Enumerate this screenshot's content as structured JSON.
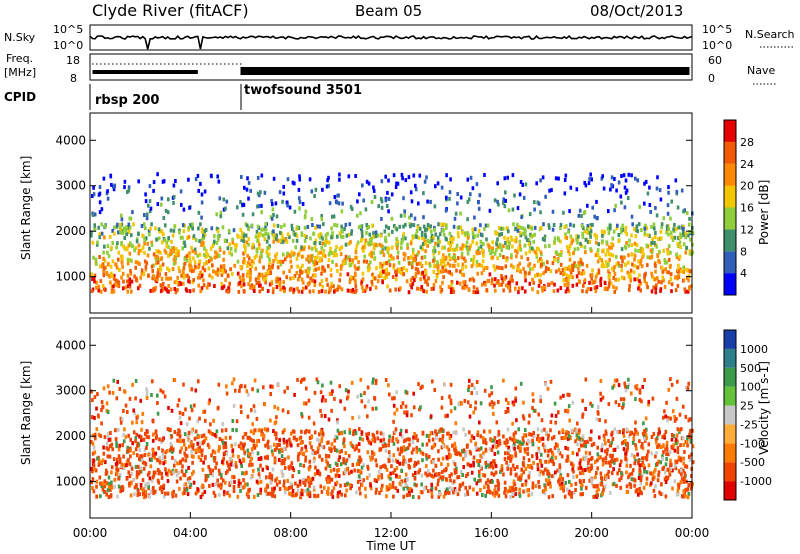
{
  "header": {
    "station": "Clyde River (fitACF)",
    "beam": "Beam 05",
    "date": "08/Oct/2013"
  },
  "ops_panel": {
    "nsky_label": "N.Sky",
    "nsky_ticks": [
      "10^5",
      "10^0"
    ],
    "nsearch_label": "N.Search",
    "nsearch_ticks": [
      "10^5",
      "10^0"
    ],
    "freq_label_1": "Freq.",
    "freq_label_2": "[MHz]",
    "freq_ticks": [
      "18",
      "8"
    ],
    "nave_label": "Nave",
    "nave_ticks": [
      "60",
      "0"
    ],
    "cpid_label": "CPID",
    "cpid_segments": [
      {
        "name": "rbsp 200",
        "start_hour": 0.0
      },
      {
        "name": "twofsound 3501",
        "start_hour": 6.0
      }
    ]
  },
  "chart_data": [
    {
      "type": "heatmap",
      "title": "",
      "xlabel": "Time UT",
      "ylabel": "Slant Range [km]",
      "x_ticks": [
        "00:00",
        "04:00",
        "08:00",
        "12:00",
        "16:00",
        "20:00",
        "00:00"
      ],
      "xlim": [
        0,
        24
      ],
      "y_ticks": [
        "1000",
        "2000",
        "3000",
        "4000"
      ],
      "ylim": [
        200,
        4600
      ],
      "colorbar": {
        "label": "Power [dB]",
        "ticks": [
          "4",
          "8",
          "12",
          "16",
          "20",
          "24",
          "28"
        ],
        "colors": [
          "#0000ff",
          "#2f5fb8",
          "#3f8f6a",
          "#8fce3a",
          "#f2c600",
          "#ff8a00",
          "#f25a00",
          "#e60000"
        ]
      }
    },
    {
      "type": "heatmap",
      "title": "",
      "xlabel": "Time UT",
      "ylabel": "Slant Range [km]",
      "x_ticks": [
        "00:00",
        "04:00",
        "08:00",
        "12:00",
        "16:00",
        "20:00",
        "00:00"
      ],
      "xlim": [
        0,
        24
      ],
      "y_ticks": [
        "1000",
        "2000",
        "3000",
        "4000"
      ],
      "ylim": [
        200,
        4600
      ],
      "colorbar": {
        "label": "Velocity [m s-1]",
        "ticks": [
          "1000",
          "500",
          "100",
          "25",
          "-25",
          "-100",
          "-500",
          "-1000"
        ],
        "colors": [
          "#1a3ea8",
          "#2e7f8a",
          "#3d9a4a",
          "#63c23a",
          "#c8c8c8",
          "#ffad3a",
          "#ff7a00",
          "#f04500",
          "#e00000"
        ]
      }
    }
  ]
}
